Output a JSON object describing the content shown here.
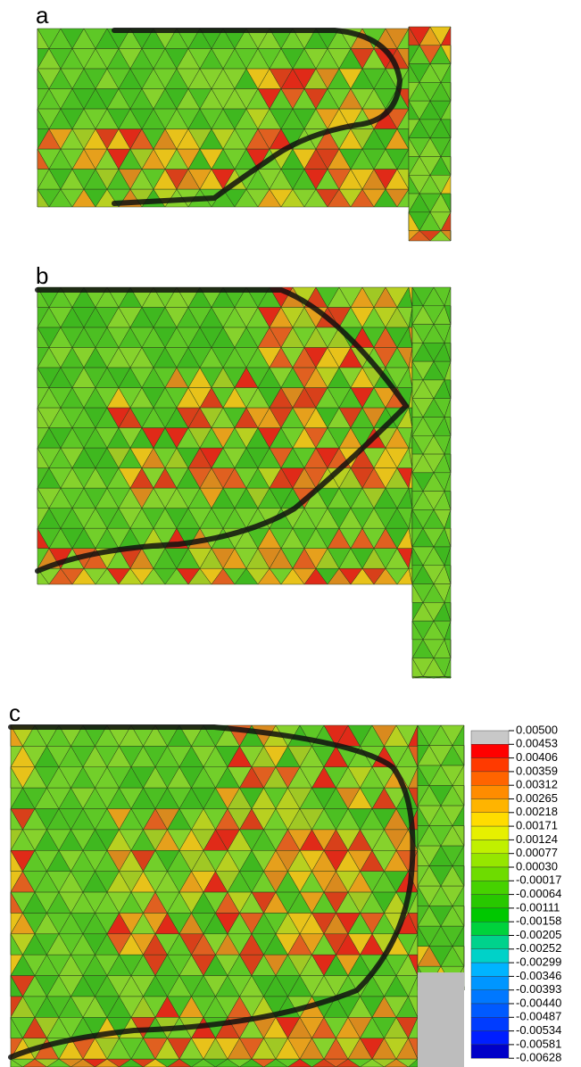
{
  "panels": [
    {
      "label": "a"
    },
    {
      "label": "b"
    },
    {
      "label": "c"
    }
  ],
  "legend": {
    "labels": [
      "0.00500",
      "0.00453",
      "0.00406",
      "0.00359",
      "0.00312",
      "0.00265",
      "0.00218",
      "0.00171",
      "0.00124",
      "0.00077",
      "0.00030",
      "-0.00017",
      "-0.00064",
      "-0.00111",
      "-0.00158",
      "-0.00205",
      "-0.00252",
      "-0.00299",
      "-0.00346",
      "-0.00393",
      "-0.00440",
      "-0.00487",
      "-0.00534",
      "-0.00581",
      "-0.00628"
    ]
  }
}
